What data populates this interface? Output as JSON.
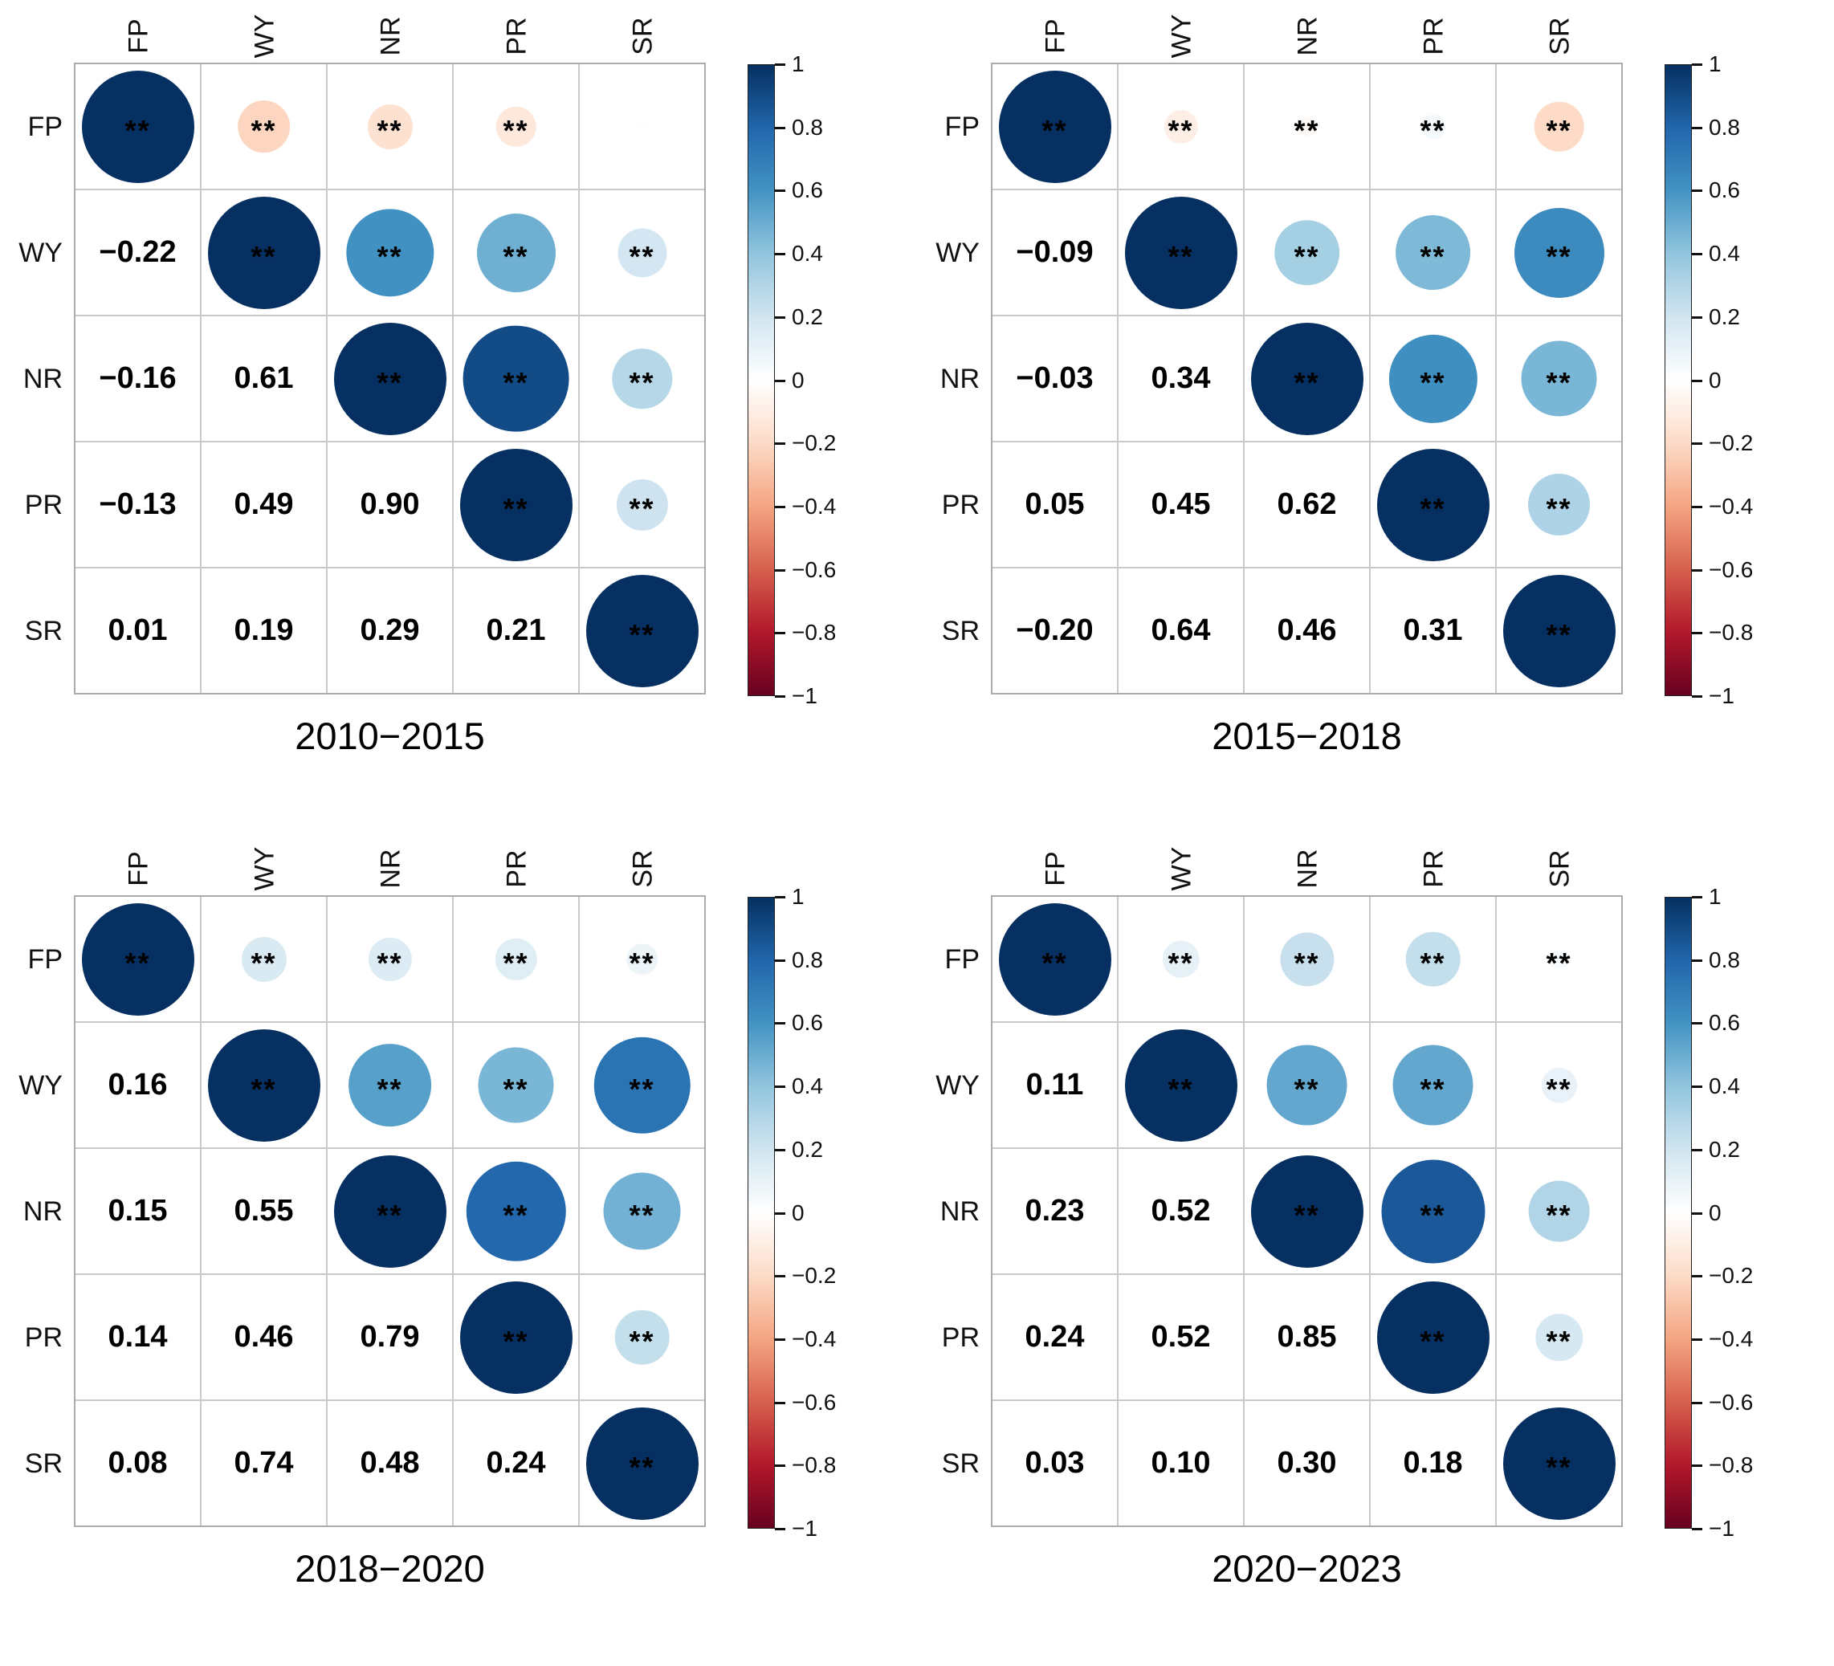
{
  "figure": {
    "description": "Four correlation matrix plots (circle corrplot style) with numeric lower triangles",
    "significance_marker": "**",
    "background_color": "#ffffff"
  },
  "chart_data": {
    "type": "heatmap",
    "subtype": "correlation-matrix-circle-plot",
    "legend_position": "right",
    "grid": true,
    "colorbar": {
      "min": -1,
      "max": 1,
      "ticks": [
        1,
        0.8,
        0.6,
        0.4,
        0.2,
        0,
        -0.2,
        -0.4,
        -0.6,
        -0.8,
        -1
      ],
      "gradient": [
        {
          "pos": 0.0,
          "color": "#67001F"
        },
        {
          "pos": 0.1,
          "color": "#B2182B"
        },
        {
          "pos": 0.2,
          "color": "#D6604D"
        },
        {
          "pos": 0.3,
          "color": "#F4A582"
        },
        {
          "pos": 0.4,
          "color": "#FDDBC7"
        },
        {
          "pos": 0.5,
          "color": "#FFFFFF"
        },
        {
          "pos": 0.6,
          "color": "#D1E5F0"
        },
        {
          "pos": 0.7,
          "color": "#92C5DE"
        },
        {
          "pos": 0.8,
          "color": "#4393C3"
        },
        {
          "pos": 0.9,
          "color": "#2166AC"
        },
        {
          "pos": 1.0,
          "color": "#053061"
        }
      ]
    },
    "panels": [
      {
        "title": "2010−2015",
        "variables": [
          "FP",
          "WY",
          "NR",
          "PR",
          "SR"
        ],
        "matrix": [
          [
            1.0,
            -0.22,
            -0.16,
            -0.13,
            0.01
          ],
          [
            -0.22,
            1.0,
            0.61,
            0.49,
            0.19
          ],
          [
            -0.16,
            0.61,
            1.0,
            0.9,
            0.29
          ],
          [
            -0.13,
            0.49,
            0.9,
            1.0,
            0.21
          ],
          [
            0.01,
            0.19,
            0.29,
            0.21,
            1.0
          ]
        ],
        "significant": [
          [
            true,
            true,
            true,
            true,
            false
          ],
          [
            false,
            true,
            true,
            true,
            true
          ],
          [
            false,
            false,
            true,
            true,
            true
          ],
          [
            false,
            false,
            false,
            true,
            true
          ],
          [
            false,
            false,
            false,
            false,
            true
          ]
        ]
      },
      {
        "title": "2015−2018",
        "variables": [
          "FP",
          "WY",
          "NR",
          "PR",
          "SR"
        ],
        "matrix": [
          [
            1.0,
            -0.09,
            -0.03,
            0.05,
            -0.2
          ],
          [
            -0.09,
            1.0,
            0.34,
            0.45,
            0.64
          ],
          [
            -0.03,
            0.34,
            1.0,
            0.62,
            0.46
          ],
          [
            0.05,
            0.45,
            0.62,
            1.0,
            0.31
          ],
          [
            -0.2,
            0.64,
            0.46,
            0.31,
            1.0
          ]
        ],
        "significant": [
          [
            true,
            true,
            true,
            true,
            true
          ],
          [
            false,
            true,
            true,
            true,
            true
          ],
          [
            false,
            false,
            true,
            true,
            true
          ],
          [
            false,
            false,
            false,
            true,
            true
          ],
          [
            false,
            false,
            false,
            false,
            true
          ]
        ]
      },
      {
        "title": "2018−2020",
        "variables": [
          "FP",
          "WY",
          "NR",
          "PR",
          "SR"
        ],
        "matrix": [
          [
            1.0,
            0.16,
            0.15,
            0.14,
            0.08
          ],
          [
            0.16,
            1.0,
            0.55,
            0.46,
            0.74
          ],
          [
            0.15,
            0.55,
            1.0,
            0.79,
            0.48
          ],
          [
            0.14,
            0.46,
            0.79,
            1.0,
            0.24
          ],
          [
            0.08,
            0.74,
            0.48,
            0.24,
            1.0
          ]
        ],
        "significant": [
          [
            true,
            true,
            true,
            true,
            true
          ],
          [
            false,
            true,
            true,
            true,
            true
          ],
          [
            false,
            false,
            true,
            true,
            true
          ],
          [
            false,
            false,
            false,
            true,
            true
          ],
          [
            false,
            false,
            false,
            false,
            true
          ]
        ]
      },
      {
        "title": "2020−2023",
        "variables": [
          "FP",
          "WY",
          "NR",
          "PR",
          "SR"
        ],
        "matrix": [
          [
            1.0,
            0.11,
            0.23,
            0.24,
            0.03
          ],
          [
            0.11,
            1.0,
            0.52,
            0.52,
            0.1
          ],
          [
            0.23,
            0.52,
            1.0,
            0.85,
            0.3
          ],
          [
            0.24,
            0.52,
            0.85,
            1.0,
            0.18
          ],
          [
            0.03,
            0.1,
            0.3,
            0.18,
            1.0
          ]
        ],
        "significant": [
          [
            true,
            true,
            true,
            true,
            true
          ],
          [
            false,
            true,
            true,
            true,
            true
          ],
          [
            false,
            false,
            true,
            true,
            true
          ],
          [
            false,
            false,
            false,
            true,
            true
          ],
          [
            false,
            false,
            false,
            false,
            true
          ]
        ]
      }
    ]
  }
}
